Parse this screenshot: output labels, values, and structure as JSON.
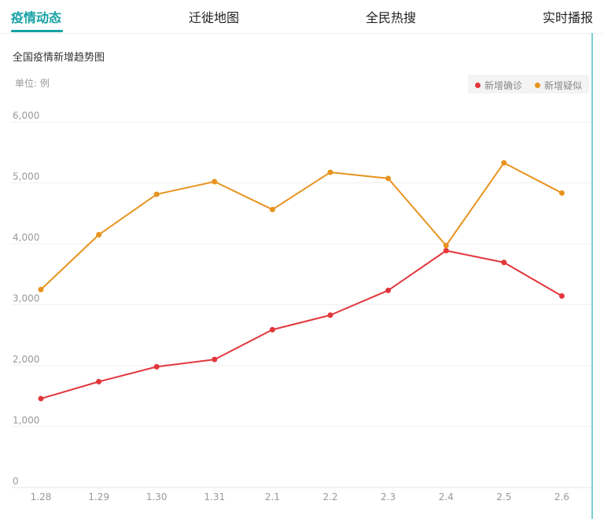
{
  "tabs": [
    {
      "label": "疫情动态",
      "active": true
    },
    {
      "label": "迁徙地图",
      "active": false
    },
    {
      "label": "全民热搜",
      "active": false
    },
    {
      "label": "实时播报",
      "active": false
    }
  ],
  "colors": {
    "accent": "#17a2a5",
    "confirmed": "#e2363b",
    "suspected": "#e8931f"
  },
  "chart_data": {
    "type": "line",
    "title": "全国疫情新增趋势图",
    "unit_label": "单位: 例",
    "categories": [
      "1.28",
      "1.29",
      "1.30",
      "1.31",
      "2.1",
      "2.2",
      "2.3",
      "2.4",
      "2.5",
      "2.6"
    ],
    "y_ticks": [
      "0",
      "1,000",
      "2,000",
      "3,000",
      "4,000",
      "5,000",
      "6,000"
    ],
    "ylim": [
      0,
      6000
    ],
    "grid": true,
    "legend_position": "top-right",
    "series": [
      {
        "name": "新增确诊",
        "color": "#e2363b",
        "values": [
          1459,
          1737,
          1982,
          2102,
          2590,
          2829,
          3235,
          3887,
          3694,
          3143
        ]
      },
      {
        "name": "新增疑似",
        "color": "#e8931f",
        "values": [
          3248,
          4148,
          4812,
          5019,
          4562,
          5173,
          5072,
          3971,
          5328,
          4833
        ]
      }
    ]
  }
}
